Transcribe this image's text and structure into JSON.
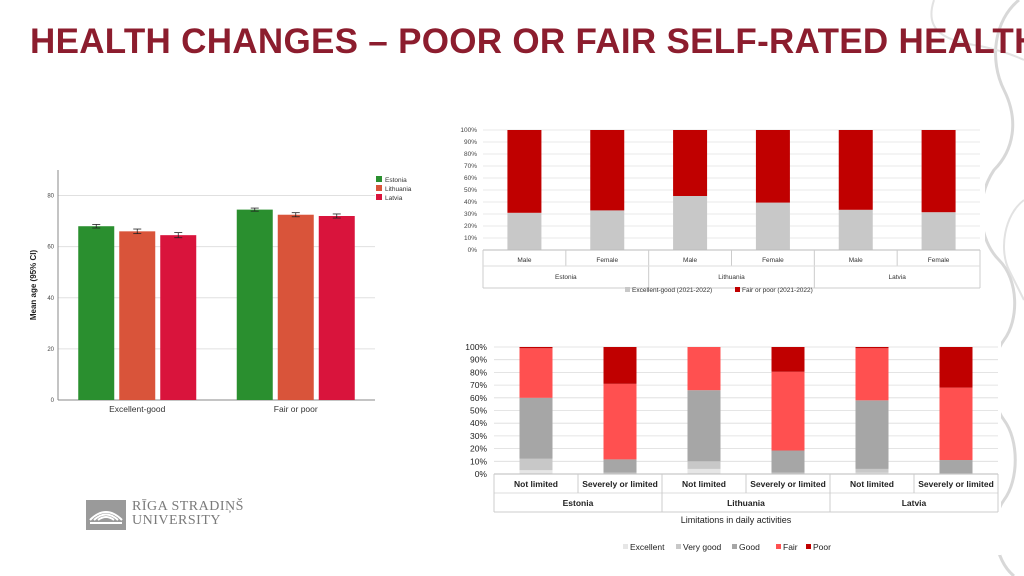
{
  "page": {
    "title": "HEALTH CHANGES – POOR OR FAIR SELF-RATED HEALTH",
    "logo_line1": "RĪGA STRADIŅŠ",
    "logo_line2": "UNIVERSITY",
    "accent_color": "#8c1d2e"
  },
  "chart_data": [
    {
      "type": "bar",
      "categories": [
        "Excellent-good",
        "Fair or poor"
      ],
      "series": [
        {
          "name": "Estonia",
          "values": [
            68,
            74.5
          ],
          "errors": [
            0.7,
            0.6
          ],
          "color": "#2a8f2f"
        },
        {
          "name": "Lithuania",
          "values": [
            66,
            72.5
          ],
          "errors": [
            0.9,
            0.8
          ],
          "color": "#d9543a"
        },
        {
          "name": "Latvia",
          "values": [
            64.5,
            72
          ],
          "errors": [
            1.0,
            0.8
          ],
          "color": "#d9143c"
        }
      ],
      "ylabel": "Mean age (95% CI)",
      "ylim": [
        0,
        90
      ],
      "yticks": [
        0,
        20,
        40,
        60,
        80
      ],
      "legend": "top-right",
      "grid": true
    },
    {
      "type": "bar",
      "stacked": true,
      "groups": [
        "Estonia",
        "Lithuania",
        "Latvia"
      ],
      "categories": [
        "Male",
        "Female",
        "Male",
        "Female",
        "Male",
        "Female"
      ],
      "series": [
        {
          "name": "Excellent-good (2021-2022)",
          "values": [
            31,
            33,
            45,
            39.5,
            33.5,
            31.5
          ],
          "color": "#c8c8c8"
        },
        {
          "name": "Fair or poor (2021-2022)",
          "values": [
            69,
            67,
            55,
            60.5,
            66.5,
            68.5
          ],
          "color": "#c00000"
        }
      ],
      "ylim": [
        0,
        100
      ],
      "yticks": [
        "0%",
        "10%",
        "20%",
        "30%",
        "40%",
        "50%",
        "60%",
        "70%",
        "80%",
        "90%",
        "100%"
      ],
      "legend": "bottom",
      "grid": true
    },
    {
      "type": "bar",
      "stacked": true,
      "groups": [
        "Estonia",
        "Lithuania",
        "Latvia"
      ],
      "categories": [
        "Not limited",
        "Severely or limited",
        "Not limited",
        "Severely or limited",
        "Not limited",
        "Severely or limited"
      ],
      "xlabel": "Limitations in daily activities",
      "series": [
        {
          "name": "Excellent",
          "values": [
            3,
            0,
            4,
            0,
            1,
            0
          ],
          "color": "#e6e6e6"
        },
        {
          "name": "Very good",
          "values": [
            9,
            1,
            6,
            1,
            3,
            0.5
          ],
          "color": "#c8c8c8"
        },
        {
          "name": "Good",
          "values": [
            48,
            10.5,
            56,
            17.5,
            54,
            10.5
          ],
          "color": "#a6a6a6"
        },
        {
          "name": "Fair",
          "values": [
            39,
            59.5,
            34,
            62,
            41,
            57
          ],
          "color": "#ff5050"
        },
        {
          "name": "Poor",
          "values": [
            1,
            29,
            0,
            19.5,
            1,
            32
          ],
          "color": "#c00000"
        }
      ],
      "ylim": [
        0,
        100
      ],
      "yticks": [
        "0%",
        "10%",
        "20%",
        "30%",
        "40%",
        "50%",
        "60%",
        "70%",
        "80%",
        "90%",
        "100%"
      ],
      "legend": "bottom",
      "grid": true
    }
  ]
}
